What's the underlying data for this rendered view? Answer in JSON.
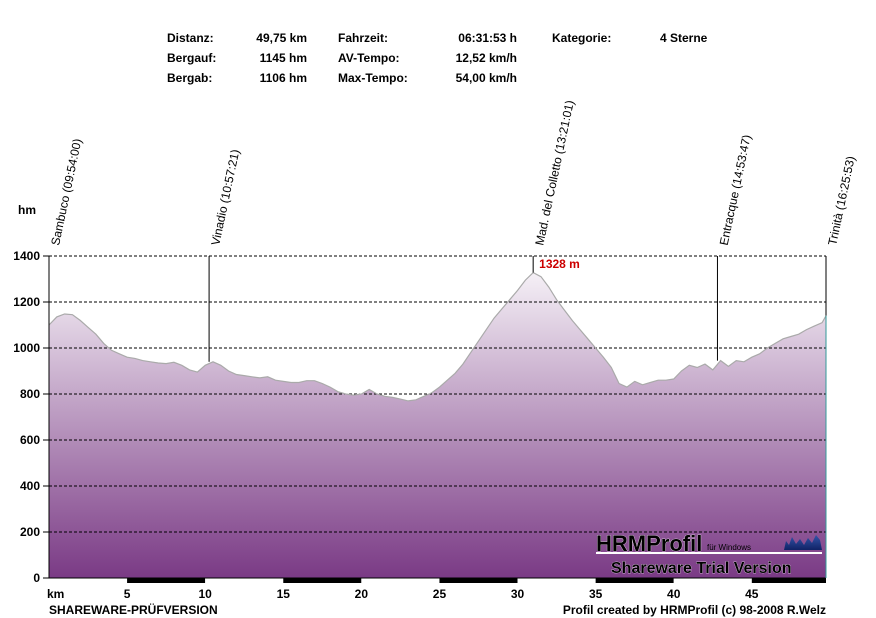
{
  "stats": [
    {
      "label": "Distanz:",
      "value": "49,75 km"
    },
    {
      "label": "Bergauf:",
      "value": "1145 hm"
    },
    {
      "label": "Bergab:",
      "value": "1106 hm"
    },
    {
      "label": "Fahrzeit:",
      "value": "06:31:53 h"
    },
    {
      "label": "AV-Tempo:",
      "value": "12,52 km/h"
    },
    {
      "label": "Max-Tempo:",
      "value": "54,00 km/h"
    },
    {
      "label": "Kategorie:",
      "value": "4 Sterne"
    }
  ],
  "footer": {
    "left": "SHAREWARE-PRÜFVERSION",
    "right": "Profil created by HRMProfil (c) 98-2008 R.Welz"
  },
  "logo": {
    "title": "HRMProfil",
    "sub": "für Windows",
    "trial": "Shareware Trial  Version"
  },
  "chart_data": {
    "type": "area",
    "xlabel": "km",
    "ylabel": "hm",
    "xlim": [
      0,
      49.75
    ],
    "ylim": [
      0,
      1400
    ],
    "x_ticks": [
      5,
      10,
      15,
      20,
      25,
      30,
      35,
      40,
      45
    ],
    "y_ticks": [
      0,
      200,
      400,
      600,
      800,
      1000,
      1200,
      1400
    ],
    "grid": "horizontal dashed",
    "fill_colors": {
      "top": "#f5f0f6",
      "bottom": "#7a3a85"
    },
    "line_color": "#aaaaaa",
    "max_label": {
      "text": "1328 m",
      "x": 31.0,
      "y": 1328,
      "color": "#cc0000"
    },
    "waypoints": [
      {
        "label": "Sambuco (09:54:00)",
        "x": 0.0
      },
      {
        "label": "Vinadio (10:57:21)",
        "x": 10.25
      },
      {
        "label": "Mad. del Colletto (13:21:01)",
        "x": 31.0
      },
      {
        "label": "Entracque (14:53:47)",
        "x": 42.8
      },
      {
        "label": "Trinità (16:25:53)",
        "x": 49.75
      }
    ],
    "x": [
      0,
      0.5,
      1.0,
      1.5,
      2.0,
      2.5,
      3.0,
      3.5,
      4.0,
      4.5,
      5.0,
      5.5,
      6.0,
      6.5,
      7.0,
      7.5,
      8.0,
      8.5,
      9.0,
      9.5,
      10.0,
      10.5,
      11.0,
      11.5,
      12.0,
      12.5,
      13.0,
      13.5,
      14.0,
      14.5,
      15.0,
      15.5,
      16.0,
      16.5,
      17.0,
      17.5,
      18.0,
      18.5,
      19.0,
      19.5,
      20.0,
      20.5,
      21.0,
      21.5,
      22.0,
      22.5,
      23.0,
      23.5,
      24.0,
      24.5,
      25.0,
      25.5,
      26.0,
      26.5,
      27.0,
      27.5,
      28.0,
      28.5,
      29.0,
      29.5,
      30.0,
      30.5,
      31.0,
      31.5,
      32.0,
      32.5,
      33.0,
      33.5,
      34.0,
      34.5,
      35.0,
      35.5,
      36.0,
      36.5,
      37.0,
      37.5,
      38.0,
      38.5,
      39.0,
      39.5,
      40.0,
      40.5,
      41.0,
      41.5,
      42.0,
      42.5,
      43.0,
      43.5,
      44.0,
      44.5,
      45.0,
      45.5,
      46.0,
      46.5,
      47.0,
      47.5,
      48.0,
      48.5,
      49.0,
      49.5,
      49.75
    ],
    "y": [
      1100,
      1135,
      1148,
      1145,
      1120,
      1090,
      1060,
      1020,
      990,
      975,
      960,
      955,
      945,
      940,
      935,
      932,
      938,
      925,
      905,
      895,
      925,
      940,
      925,
      900,
      885,
      880,
      875,
      870,
      875,
      860,
      855,
      850,
      850,
      858,
      858,
      845,
      830,
      810,
      800,
      795,
      800,
      820,
      800,
      790,
      785,
      778,
      770,
      775,
      790,
      805,
      830,
      860,
      890,
      930,
      980,
      1030,
      1080,
      1130,
      1170,
      1210,
      1250,
      1295,
      1328,
      1310,
      1265,
      1210,
      1165,
      1120,
      1080,
      1040,
      1000,
      960,
      915,
      845,
      830,
      855,
      840,
      850,
      860,
      860,
      865,
      900,
      925,
      915,
      930,
      905,
      945,
      920,
      945,
      940,
      960,
      975,
      1000,
      1020,
      1040,
      1050,
      1060,
      1080,
      1095,
      1110,
      1140
    ]
  }
}
